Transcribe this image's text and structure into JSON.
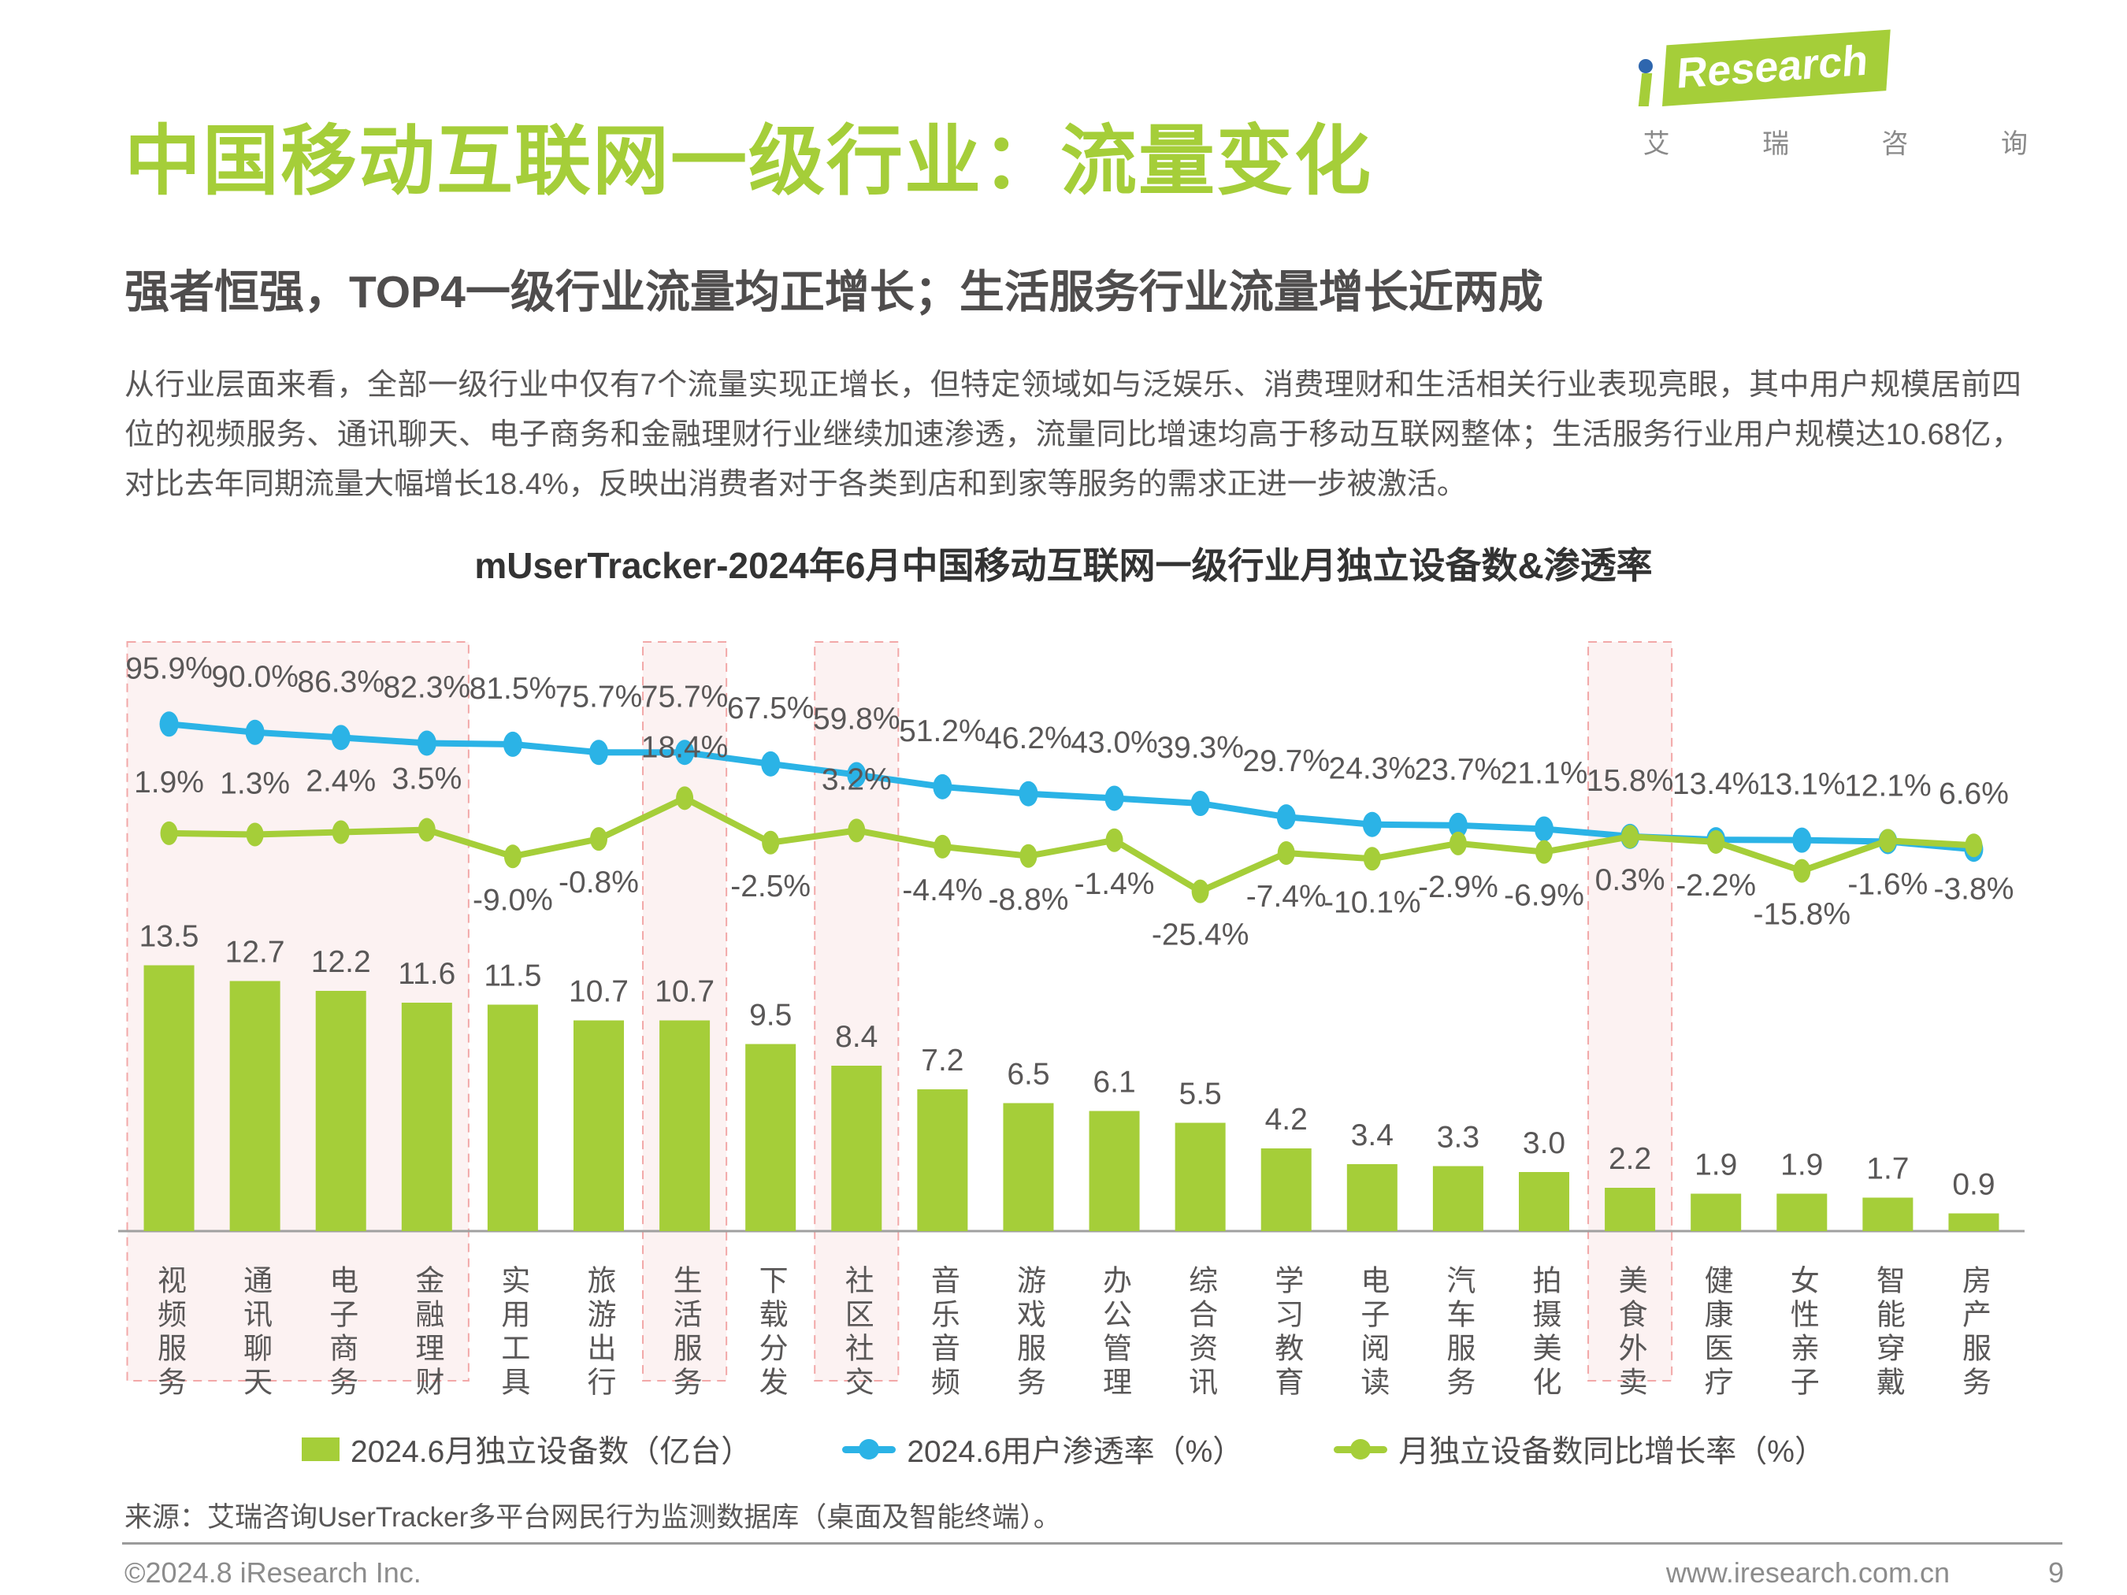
{
  "page": {
    "title": "中国移动互联网一级行业：流量变化",
    "subtitle": "强者恒强，TOP4一级行业流量均正增长；生活服务行业流量增长近两成",
    "body_text": "从行业层面来看，全部一级行业中仅有7个流量实现正增长，但特定领域如与泛娱乐、消费理财和生活相关行业表现亮眼，其中用户规模居前四位的视频服务、通讯聊天、电子商务和金融理财行业继续加速渗透，流量同比增速均高于移动互联网整体；生活服务行业用户规模达10.68亿，对比去年同期流量大幅增长18.4%，反映出消费者对于各类到店和到家等服务的需求正进一步被激活。",
    "source": "来源：艾瑞咨询UserTracker多平台网民行为监测数据库（桌面及智能终端）。",
    "footer_left": "©2024.8 iResearch Inc.",
    "footer_url": "www.iresearch.com.cn",
    "page_number": "9"
  },
  "logo": {
    "brand": "Research",
    "cn": "艾 瑞 咨 询"
  },
  "colors": {
    "green": "#A5CE39",
    "blue": "#2BB3E6",
    "text_gray": "#595757",
    "highlight_pink": "#FCF2F2",
    "highlight_border": "#F2A8A8",
    "axis_line": "#A0A0A0",
    "logo_dot_blue": "#2E66AE"
  },
  "chart_data": {
    "type": "bar",
    "title": "mUserTracker-2024年6月中国移动互联网一级行业月独立设备数&渗透率",
    "categories": [
      "视频服务",
      "通讯聊天",
      "电子商务",
      "金融理财",
      "实用工具",
      "旅游出行",
      "生活服务",
      "下载分发",
      "社区社交",
      "音乐音频",
      "游戏服务",
      "办公管理",
      "综合资讯",
      "学习教育",
      "电子阅读",
      "汽车服务",
      "拍摄美化",
      "美食外卖",
      "健康医疗",
      "女性亲子",
      "智能穿戴",
      "房产服务"
    ],
    "series": [
      {
        "name": "2024.6月独立设备数（亿台）",
        "type": "bar",
        "color": "#A5CE39",
        "values": [
          13.5,
          12.7,
          12.2,
          11.6,
          11.5,
          10.7,
          10.7,
          9.5,
          8.4,
          7.2,
          6.5,
          6.1,
          5.5,
          4.2,
          3.4,
          3.3,
          3.0,
          2.2,
          1.9,
          1.9,
          1.7,
          0.9
        ]
      },
      {
        "name": "2024.6用户渗透率（%）",
        "type": "line",
        "color": "#2BB3E6",
        "values": [
          95.9,
          90.0,
          86.3,
          82.3,
          81.5,
          75.7,
          75.7,
          67.5,
          59.8,
          51.2,
          46.2,
          43.0,
          39.3,
          29.7,
          24.3,
          23.7,
          21.1,
          15.8,
          13.4,
          13.1,
          12.1,
          6.6
        ]
      },
      {
        "name": "月独立设备数同比增长率（%）",
        "type": "line",
        "color": "#A5CE39",
        "values": [
          1.9,
          1.3,
          2.4,
          3.5,
          -9.0,
          -0.8,
          18.4,
          -2.5,
          3.2,
          -4.4,
          -8.8,
          -1.4,
          -25.4,
          -7.4,
          -10.1,
          -2.9,
          -6.9,
          0.3,
          -2.2,
          -15.8,
          -1.6,
          -3.8
        ],
        "label_side": [
          "above",
          "above",
          "above",
          "above",
          "below",
          "below",
          "above",
          "below",
          "above",
          "below",
          "below",
          "below",
          "below",
          "below",
          "below",
          "below",
          "below",
          "below",
          "below",
          "below",
          "below",
          "below"
        ]
      }
    ],
    "highlighted_categories": [
      "视频服务",
      "通讯聊天",
      "电子商务",
      "金融理财",
      "生活服务",
      "社区社交",
      "美食外卖"
    ],
    "highlight_groups": [
      [
        0,
        3
      ],
      [
        6,
        6
      ],
      [
        8,
        8
      ],
      [
        17,
        17
      ]
    ],
    "legend_position": "bottom",
    "grid": false
  }
}
